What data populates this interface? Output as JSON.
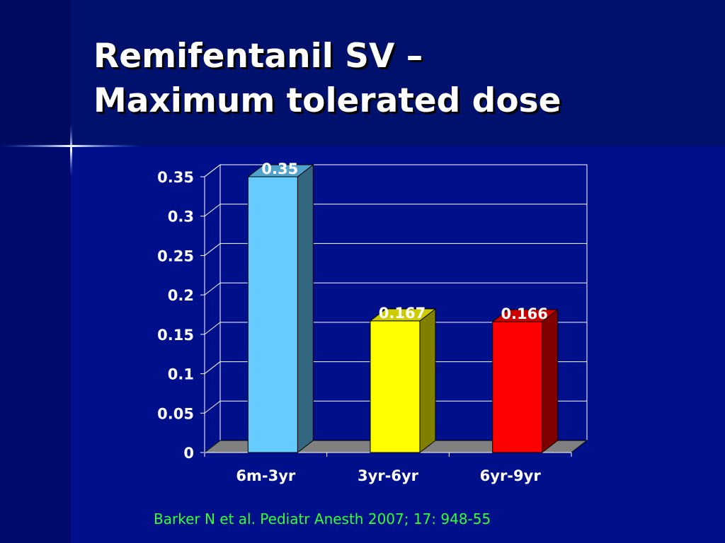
{
  "slide": {
    "title_line1": "Remifentanil SV –",
    "title_line2": "Maximum tolerated dose",
    "citation": "Barker N et al. Pediatr Anesth 2007; 17: 948-55"
  },
  "colors": {
    "background": "#000f8a",
    "title_text": "#ffffff",
    "citation_text": "#33ff33",
    "axis_text": "#ffffff",
    "gridline": "#ffffff",
    "floor": "#808080"
  },
  "chart_data": {
    "type": "bar",
    "style": "3d-column",
    "categories": [
      "6m-3yr",
      "3yr-6yr",
      "6yr-9yr"
    ],
    "values": [
      0.35,
      0.167,
      0.166
    ],
    "value_labels": [
      "0.35",
      "0.167",
      "0.166"
    ],
    "bar_colors": [
      "#66ccff",
      "#ffff00",
      "#ff0000"
    ],
    "ylim": [
      0,
      0.35
    ],
    "yticks": [
      0,
      0.05,
      0.1,
      0.15,
      0.2,
      0.25,
      0.3,
      0.35
    ],
    "ytick_labels": [
      "0",
      "0.05",
      "0.1",
      "0.15",
      "0.2",
      "0.25",
      "0.3",
      "0.35"
    ],
    "grid": true,
    "legend": "none",
    "title": "",
    "xlabel": "",
    "ylabel": ""
  }
}
